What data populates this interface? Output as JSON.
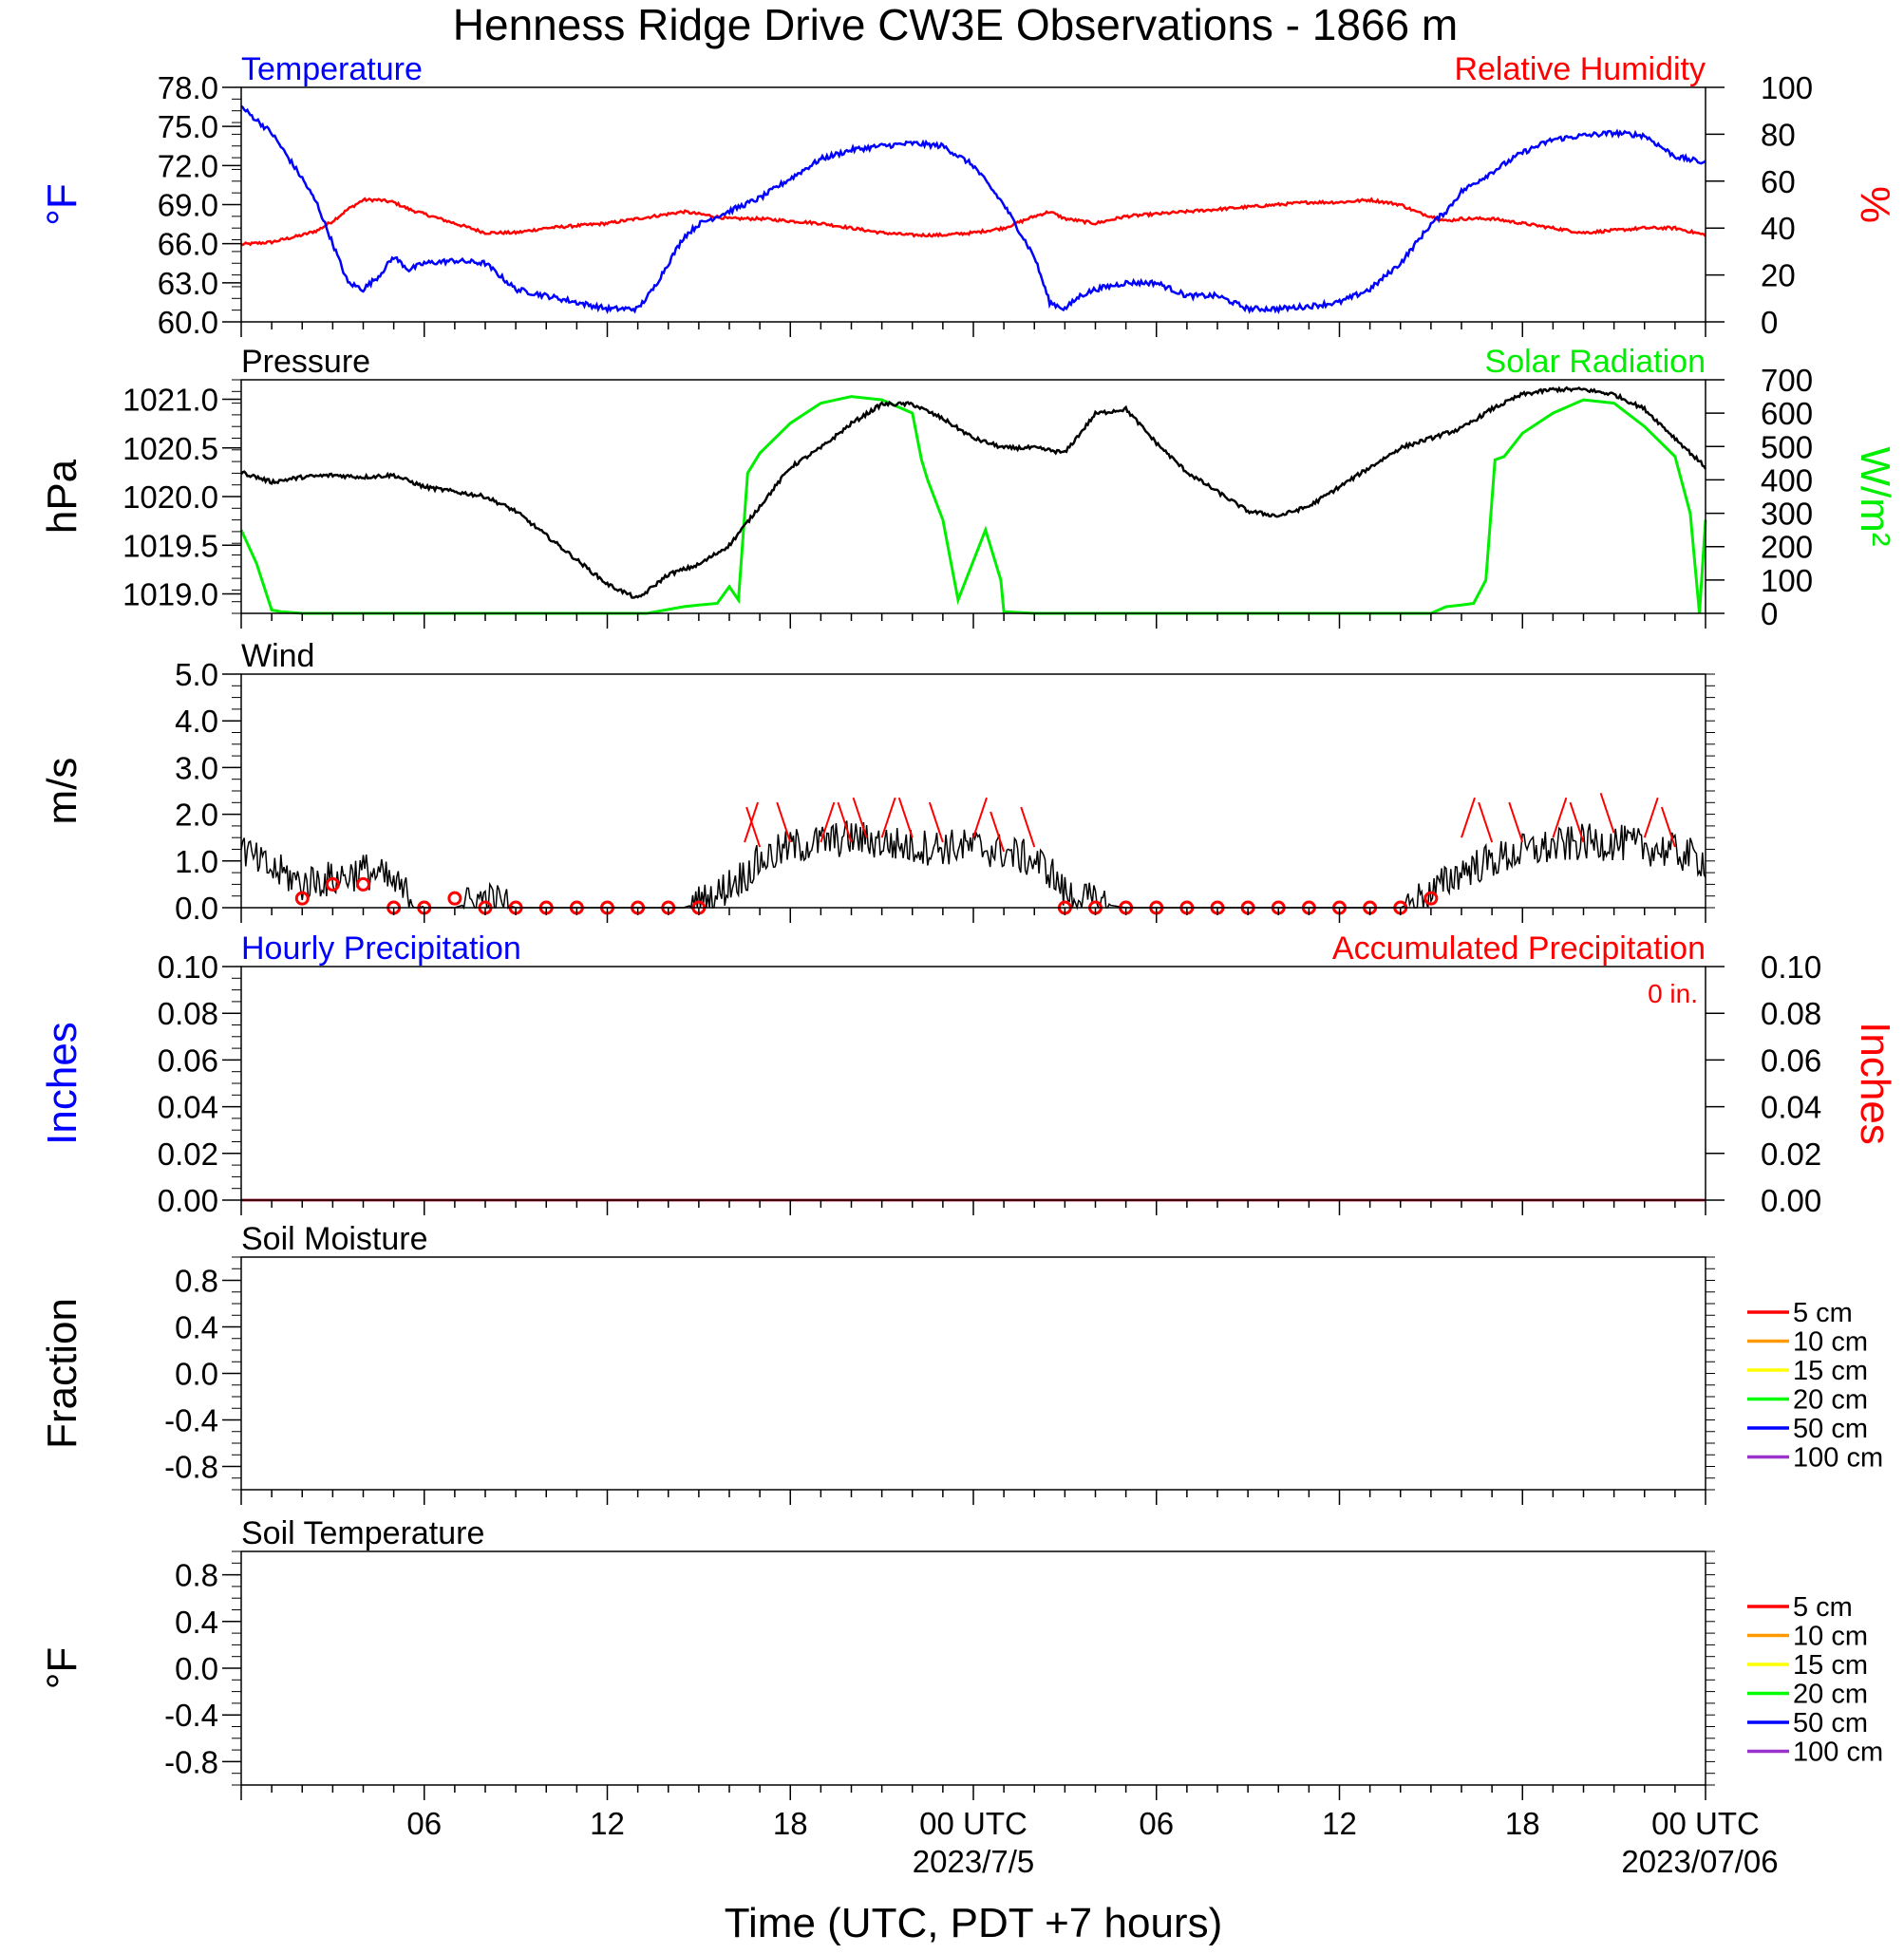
{
  "title": "Henness Ridge Drive CW3E Observations - 1866 m",
  "xlabel": "Time (UTC, PDT +7 hours)",
  "x_ticks": [
    "06",
    "12",
    "18",
    "00 UTC",
    "06",
    "12",
    "18",
    "00 UTC"
  ],
  "x_dates": [
    "2023/7/5",
    "2023/07/06"
  ],
  "colors": {
    "temperature": "#0000ff",
    "humidity": "#ff0000",
    "pressure": "#000000",
    "solar": "#00ee00",
    "wind": "#000000",
    "barbs": "#ff0000",
    "hourly_precip": "#0000ff",
    "accum_precip": "#ff0000"
  },
  "chart_data": [
    {
      "type": "line",
      "panel": "temperature-humidity",
      "title_left": "Temperature",
      "title_right": "Relative Humidity",
      "ylabel_left": "°F",
      "ylabel_right": "%",
      "ylim_left": [
        60,
        78
      ],
      "ylim_right": [
        0,
        100
      ],
      "yticks_left": [
        "60.0",
        "63.0",
        "66.0",
        "69.0",
        "72.0",
        "75.0",
        "78.0"
      ],
      "yticks_right": [
        "0",
        "20",
        "40",
        "60",
        "80",
        "100"
      ],
      "x_hours": [
        0,
        1,
        2,
        2.5,
        3,
        3.5,
        4,
        4.5,
        5,
        5.5,
        6,
        7,
        8,
        9,
        10,
        11,
        12,
        13,
        13.5,
        14,
        14.5,
        15,
        16,
        17,
        18,
        19,
        20,
        21,
        22,
        23,
        24,
        25,
        26,
        26.5,
        27,
        27.5,
        28,
        29,
        30,
        31,
        32,
        33,
        34,
        35,
        36,
        37,
        38,
        38.5,
        39,
        39.5,
        40,
        41,
        42,
        43,
        44,
        45,
        46,
        47,
        48
      ],
      "series": [
        {
          "name": "Temperature",
          "axis": "left",
          "values": [
            76.5,
            74.5,
            71.0,
            69.0,
            66.0,
            63.0,
            62.5,
            63.5,
            65.0,
            64.0,
            64.5,
            64.7,
            64.5,
            62.5,
            62.0,
            61.5,
            61.0,
            61.0,
            62.5,
            64.5,
            66.5,
            67.5,
            68.5,
            69.5,
            71.0,
            72.5,
            73.2,
            73.5,
            73.7,
            73.5,
            72.0,
            69.0,
            65.0,
            61.5,
            61.0,
            62.0,
            62.5,
            63.0,
            63.0,
            62.0,
            62.0,
            61.0,
            61.0,
            61.2,
            61.5,
            62.5,
            64.5,
            66.0,
            67.5,
            68.5,
            70.0,
            71.5,
            73.0,
            74.0,
            74.3,
            74.5,
            74.3,
            72.7,
            72.2
          ]
        },
        {
          "name": "Relative Humidity",
          "axis": "right",
          "values": [
            33,
            34,
            37,
            39,
            43,
            48,
            52,
            52,
            51,
            48,
            46,
            42,
            38,
            38,
            40,
            41,
            42,
            44,
            45,
            46,
            47,
            46,
            44,
            44,
            43,
            42,
            40,
            38,
            37,
            37,
            38,
            40,
            45,
            47,
            44,
            43,
            42,
            45,
            46,
            47,
            48,
            49,
            50,
            51,
            51,
            52,
            50,
            47,
            45,
            43,
            44,
            44,
            42,
            40,
            38,
            39,
            40,
            40,
            37
          ]
        }
      ]
    },
    {
      "type": "line",
      "panel": "pressure-solar",
      "title_left": "Pressure",
      "title_right": "Solar Radiation",
      "ylabel_left": "hPa",
      "ylabel_right": "W/m²",
      "ylim_left": [
        1018.8,
        1021.2
      ],
      "ylim_right": [
        0,
        700
      ],
      "yticks_left": [
        "1019.0",
        "1019.5",
        "1020.0",
        "1020.5",
        "1021.0"
      ],
      "yticks_right": [
        "0",
        "100",
        "200",
        "300",
        "400",
        "500",
        "600",
        "700"
      ],
      "series": [
        {
          "name": "Pressure",
          "axis": "left",
          "x_hours": [
            0,
            1,
            2,
            3,
            4,
            5,
            6,
            7,
            8,
            9,
            10,
            11,
            12,
            13,
            14,
            15,
            16,
            17,
            18,
            19,
            20,
            21,
            22,
            23,
            24,
            25,
            26,
            27,
            28,
            29,
            30,
            31,
            32,
            33,
            34,
            35,
            36,
            37,
            38,
            39,
            40,
            41,
            42,
            43,
            44,
            45,
            46,
            47,
            48
          ],
          "values": [
            1020.25,
            1020.15,
            1020.2,
            1020.22,
            1020.2,
            1020.22,
            1020.1,
            1020.05,
            1020.0,
            1019.85,
            1019.6,
            1019.35,
            1019.1,
            1018.95,
            1019.2,
            1019.3,
            1019.5,
            1019.9,
            1020.3,
            1020.5,
            1020.75,
            1020.95,
            1020.95,
            1020.8,
            1020.6,
            1020.5,
            1020.5,
            1020.45,
            1020.85,
            1020.9,
            1020.55,
            1020.25,
            1020.05,
            1019.85,
            1019.8,
            1019.9,
            1020.1,
            1020.3,
            1020.5,
            1020.6,
            1020.7,
            1020.9,
            1021.05,
            1021.1,
            1021.1,
            1021.05,
            1020.9,
            1020.6,
            1020.3
          ]
        },
        {
          "name": "Solar Radiation",
          "axis": "right",
          "x_hours": [
            0,
            0.5,
            1,
            1.3,
            2,
            12,
            13,
            13.3,
            14.5,
            15,
            15.6,
            16,
            16.3,
            16.6,
            17,
            18,
            19,
            20,
            21,
            22,
            22.3,
            22.5,
            23,
            23.5,
            24.4,
            24.9,
            25,
            26,
            38,
            39,
            39.5,
            40,
            40.4,
            40.8,
            41.1,
            41.4,
            42,
            43,
            44,
            45,
            46,
            47,
            47.5,
            47.8,
            48
          ],
          "values": [
            250,
            150,
            10,
            5,
            0,
            0,
            0,
            0,
            20,
            25,
            30,
            80,
            40,
            420,
            480,
            570,
            630,
            650,
            640,
            600,
            460,
            400,
            280,
            40,
            250,
            100,
            5,
            0,
            0,
            0,
            20,
            25,
            30,
            100,
            460,
            470,
            540,
            600,
            640,
            630,
            560,
            470,
            300,
            0,
            280
          ]
        }
      ]
    },
    {
      "type": "line",
      "panel": "wind",
      "title_left": "Wind",
      "ylabel_left": "m/s",
      "ylim_left": [
        0,
        5
      ],
      "yticks_left": [
        "0.0",
        "1.0",
        "2.0",
        "3.0",
        "4.0",
        "5.0"
      ],
      "x_hours": [
        0,
        0.5,
        1,
        1.5,
        2,
        2.5,
        3,
        3.5,
        4,
        4.5,
        5,
        6,
        7,
        8,
        9,
        10,
        11,
        12,
        13,
        14,
        14.5,
        15,
        15.5,
        16,
        16.5,
        17,
        18,
        19,
        20,
        21,
        22,
        23,
        24,
        25,
        26,
        26.5,
        27,
        27.5,
        28,
        29,
        30,
        31,
        32,
        33,
        34,
        35,
        36,
        37,
        38,
        39,
        40,
        41,
        42,
        43,
        44,
        45,
        46,
        47,
        48
      ],
      "series": [
        {
          "name": "Wind",
          "values": [
            1.3,
            1.0,
            0.8,
            0.7,
            0.5,
            0.6,
            0.6,
            0.7,
            0.8,
            0.7,
            0.5,
            0.0,
            0.0,
            0.2,
            0.0,
            0.0,
            0.0,
            0.0,
            0.0,
            0.0,
            0.0,
            0.1,
            0.2,
            0.5,
            0.7,
            1.0,
            1.3,
            1.4,
            1.5,
            1.4,
            1.3,
            1.3,
            1.3,
            1.2,
            1.0,
            0.8,
            0.3,
            0.2,
            0.1,
            0.0,
            0.0,
            0.0,
            0.0,
            0.0,
            0.0,
            0.0,
            0.0,
            0.0,
            0.0,
            0.3,
            0.8,
            1.0,
            1.2,
            1.3,
            1.4,
            1.4,
            1.3,
            1.2,
            1.0
          ]
        }
      ],
      "barbs": {
        "calm_x_hours": [
          2,
          3,
          4,
          5,
          6,
          7,
          8,
          9,
          10,
          11,
          12,
          13,
          14,
          15,
          27,
          28,
          29,
          30,
          31,
          32,
          33,
          34,
          35,
          36,
          37,
          38,
          39
        ],
        "calm_values": [
          0.2,
          0.5,
          0.5,
          0.0,
          0.0,
          0.2,
          0.0,
          0.0,
          0.0,
          0.0,
          0.0,
          0.0,
          0.0,
          0.0,
          0.0,
          0.0,
          0.0,
          0.0,
          0.0,
          0.0,
          0.0,
          0.0,
          0.0,
          0.0,
          0.0,
          0.0,
          0.2
        ],
        "flag_x_hours": [
          16.5,
          17,
          18,
          19,
          20,
          20.5,
          21,
          22,
          23,
          24,
          25,
          26,
          40,
          41,
          42,
          43,
          44,
          45,
          46,
          47
        ],
        "flag_values": [
          1.4,
          1.3,
          1.4,
          1.4,
          1.4,
          1.5,
          1.5,
          1.5,
          1.4,
          1.5,
          1.2,
          1.3,
          1.5,
          1.4,
          1.4,
          1.5,
          1.4,
          1.6,
          1.5,
          1.3
        ]
      }
    },
    {
      "type": "line",
      "panel": "precipitation",
      "title_left": "Hourly Precipitation",
      "title_right": "Accumulated Precipitation",
      "annotation": "0 in.",
      "ylabel_left": "Inches",
      "ylabel_right": "Inches",
      "ylim_left": [
        0,
        0.1
      ],
      "ylim_right": [
        0,
        0.1
      ],
      "yticks_left": [
        "0.00",
        "0.02",
        "0.04",
        "0.06",
        "0.08",
        "0.10"
      ],
      "yticks_right": [
        "0.00",
        "0.02",
        "0.04",
        "0.06",
        "0.08",
        "0.10"
      ],
      "x_hours": [
        0,
        48
      ],
      "series": [
        {
          "name": "Hourly Precipitation",
          "axis": "left",
          "values": [
            0,
            0
          ]
        },
        {
          "name": "Accumulated Precipitation",
          "axis": "right",
          "values": [
            0,
            0
          ]
        }
      ]
    },
    {
      "type": "line",
      "panel": "soil-moisture",
      "title_left": "Soil Moisture",
      "ylabel_left": "Fraction",
      "ylim_left": [
        -1,
        1
      ],
      "yticks_left": [
        "-0.8",
        "-0.4",
        "0.0",
        "0.4",
        "0.8"
      ],
      "legend": [
        "5 cm",
        "10 cm",
        "15 cm",
        "20 cm",
        "50 cm",
        "100 cm"
      ],
      "legend_colors": [
        "#ff0000",
        "#ff9900",
        "#ffff00",
        "#00ff00",
        "#0000ff",
        "#9933cc"
      ],
      "series": []
    },
    {
      "type": "line",
      "panel": "soil-temperature",
      "title_left": "Soil Temperature",
      "ylabel_left": "°F",
      "ylim_left": [
        -1,
        1
      ],
      "yticks_left": [
        "-0.8",
        "-0.4",
        "0.0",
        "0.4",
        "0.8"
      ],
      "legend": [
        "5 cm",
        "10 cm",
        "15 cm",
        "20 cm",
        "50 cm",
        "100 cm"
      ],
      "legend_colors": [
        "#ff0000",
        "#ff9900",
        "#ffff00",
        "#00ff00",
        "#0000ff",
        "#9933cc"
      ],
      "series": []
    }
  ]
}
